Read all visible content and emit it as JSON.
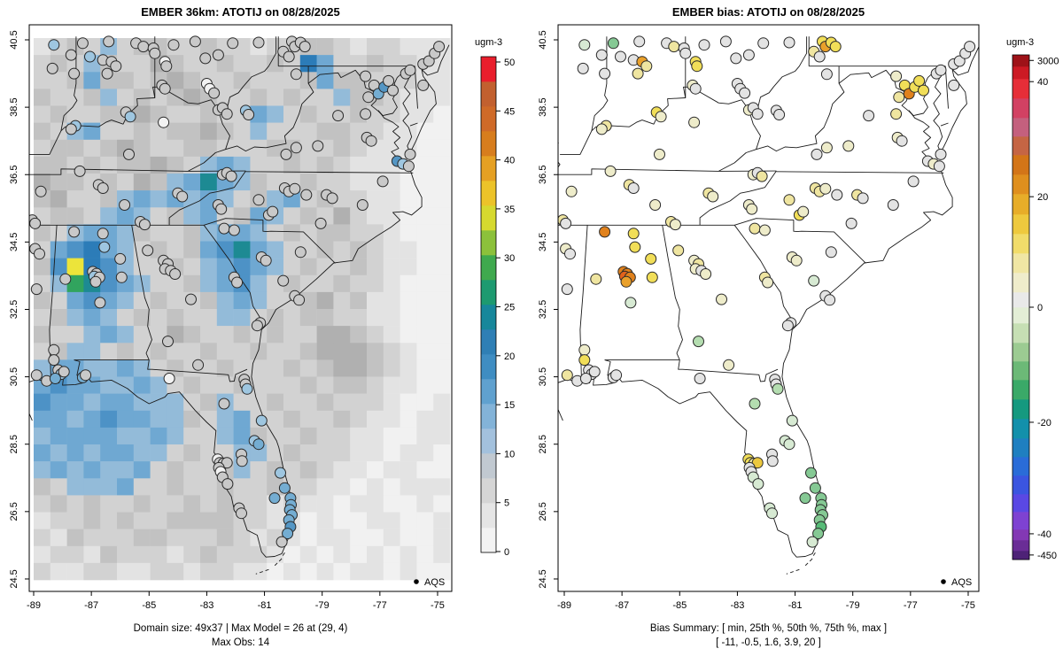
{
  "panels": {
    "left": {
      "title": "EMBER 36km: ATOTIJ on 08/28/2025",
      "caption_line1": "Domain size: 49x37 | Max Model = 26 at (29, 4)",
      "caption_line2": "Max Obs: 14",
      "legend_label": "AQS",
      "colorbar": {
        "title": "ugm-3",
        "tick_values": [
          0,
          5,
          10,
          15,
          20,
          25,
          30,
          35,
          40,
          45,
          50
        ],
        "band_colors_bottom_to_top": [
          "#f3f3f3",
          "#e5e5e5",
          "#d5d5d5",
          "#c1c9d1",
          "#a3c1dd",
          "#83b3d8",
          "#60a1cf",
          "#3f8dc2",
          "#2f7fb5",
          "#17879b",
          "#1d9a70",
          "#3fa94e",
          "#8cc13b",
          "#d6d92f",
          "#ecc329",
          "#e5a023",
          "#d77d1d",
          "#cf6a28",
          "#c2602f",
          "#e91e2c"
        ]
      }
    },
    "right": {
      "title": "EMBER bias: ATOTIJ on 08/28/2025",
      "caption_line1": "Bias Summary: [ min, 25th %, 50th %, 75th %, max ]",
      "caption_line2": "[ -11,  -0.5,  1.6,  3.9,  20 ]",
      "legend_label": "AQS",
      "colorbar": {
        "title": "ugm-3",
        "tick_labels": [
          "3000",
          "40",
          "20",
          "0",
          "-20",
          "-40",
          "-450"
        ],
        "tick_fracs_from_top": [
          0.011,
          0.053,
          0.281,
          0.5,
          0.728,
          0.949,
          0.991
        ],
        "segments_bottom_to_top": [
          [
            "#4e2277",
            10
          ],
          [
            "#6a2d96",
            12
          ],
          [
            "#8338b4",
            12
          ],
          [
            "#7e42d2",
            20
          ],
          [
            "#5a48e4",
            20
          ],
          [
            "#3b55e0",
            21
          ],
          [
            "#2a6cd8",
            21
          ],
          [
            "#1f7fc0",
            21
          ],
          [
            "#1390ab",
            22
          ],
          [
            "#15997f",
            22
          ],
          [
            "#3aa968",
            22
          ],
          [
            "#6cb977",
            21
          ],
          [
            "#9ccb92",
            21
          ],
          [
            "#c6dfb4",
            22
          ],
          [
            "#e3eed6",
            18
          ],
          [
            "#e9e9e9",
            17
          ],
          [
            "#efeccb",
            22
          ],
          [
            "#f0e6a4",
            22
          ],
          [
            "#f1dc6a",
            22
          ],
          [
            "#eec93e",
            22
          ],
          [
            "#e7ad29",
            23
          ],
          [
            "#df8f1e",
            22
          ],
          [
            "#d37518",
            22
          ],
          [
            "#c56544",
            21
          ],
          [
            "#c4607e",
            21
          ],
          [
            "#d24163",
            22
          ],
          [
            "#e62e38",
            22
          ],
          [
            "#cc1a24",
            14
          ],
          [
            "#9e1218",
            13
          ]
        ]
      }
    }
  },
  "axes": {
    "x_tick_values": [
      -89,
      -87,
      -85,
      -83,
      -81,
      -79,
      -77,
      -75
    ],
    "x_tick_labels": [
      "-89",
      "-87",
      "-85",
      "-83",
      "-81",
      "-79",
      "-77",
      "-75"
    ],
    "y_tick_values": [
      24.5,
      26.5,
      28.5,
      30.5,
      32.5,
      34.5,
      36.5,
      38.5,
      40.5
    ],
    "y_tick_labels": [
      "24.5",
      "26.5",
      "28.5",
      "30.5",
      "32.5",
      "34.5",
      "36.5",
      "38.5",
      "40.5"
    ]
  },
  "raster_palette": {
    "a": "#f1f1f1",
    "b": "#e3e3e3",
    "c": "#d2d2d2",
    "d": "#c2c2c2",
    "e": "#b0b0b0",
    "f": "#aebdca",
    "g": "#93bbd9",
    "h": "#6fa8d2",
    "i": "#4d92c6",
    "j": "#2c7cb8",
    "k": "#1d8a93",
    "l": "#31a45e",
    "m": "#b3cf36",
    "n": "#ece43a"
  },
  "raster_rows": [
    "bcdcgcddccdccbccddcbccbbb",
    "cdcgdccedccdccdcjhccdccbb",
    "ccdhddcdedccdcccdhddcccbb",
    "dccdgcdcdedccdcdccgddcbbb",
    "cdccddedccdcchgcdccdccbba",
    "dcghccdcddedcgcccddccbbaa",
    "cddcdedccddcccddccdcbbbaa",
    "ddcdcddedcghgccdcdcbbbaaa",
    "eddcdcedghkhgdccdccbbbaaa",
    "deccdghghghgcdghcdccbbaaa",
    "cddcghgcdghcdhgcdcecbbaaa",
    "dcghhgdccdghhgcdcddccbaaa",
    "chijhgcdcdhikhgccdcdcbbaa",
    "dinjigccdcghihgcdccdcbbaa",
    "cglkihgccdghigcdccdccbaaa",
    "dchihgcdccdghgccdecdbbaaa",
    "cdghgcdcdccggcdcddccbbaaa",
    "dccghgccedccdcdcceedcbaaa",
    "cdggcdcdccdccdccdeeedcbaa",
    "ghhgghgcdccdcccdcdeedcbaa",
    "hihhgghgcdccdcccdcddcbbaa",
    "ihhghhgggcdgccdccdcccbaab",
    "hhghihhggdcghccdccdcbbabb",
    "ghhhhgghgccghdccdccbbaabb",
    "hghghhggcdccggcdcccbbabba",
    "ghghgghcdccdgcdcdcbbabbaa",
    "dcggghccdccdccdccbbababbb",
    "cdcdccdccdcdccbcbbabbaaba",
    "bccdcdccddddccbbabaabbaab",
    "cbdcccddcccdcbcbabbaabaab",
    "bccbdcccbcdcccbababababab",
    "cbbccbbccbccbbabababbabaa"
  ],
  "marker_colors": {
    "obs": {
      "w": "#f2f2f2",
      "g": "#c9c9c9",
      "l": "#9ec6e0",
      "b": "#74add2",
      "B": "#5496c4"
    },
    "bias": {
      "g": "#e3e3e3",
      "c": "#eeecca",
      "y": "#efe5a0",
      "Y": "#f1de58",
      "d": "#ecc83e",
      "o": "#e9a02a",
      "O": "#e0811c",
      "R": "#e2621b",
      "p": "#d7ead3",
      "n": "#b4ddb0",
      "N": "#85c994",
      "E": "#57bb77"
    }
  },
  "stations": [
    [
      -88.3,
      40.35,
      "l",
      "p"
    ],
    [
      -87.3,
      40.4,
      "g",
      "N"
    ],
    [
      -86.4,
      40.45,
      "g",
      "g"
    ],
    [
      -85.45,
      40.4,
      "g",
      "g"
    ],
    [
      -85.2,
      40.3,
      "g",
      "y"
    ],
    [
      -87.7,
      40.05,
      "g",
      "g"
    ],
    [
      -87.05,
      40.0,
      "l",
      "g"
    ],
    [
      -86.6,
      39.9,
      "g",
      "g"
    ],
    [
      -86.3,
      39.85,
      "g",
      "o"
    ],
    [
      -86.15,
      39.72,
      "g",
      "y"
    ],
    [
      -88.35,
      39.65,
      "g",
      "g"
    ],
    [
      -87.6,
      39.5,
      "g",
      "g"
    ],
    [
      -86.45,
      39.5,
      "g",
      "y"
    ],
    [
      -84.85,
      40.25,
      "g",
      "g"
    ],
    [
      -84.8,
      40.1,
      "g",
      "g"
    ],
    [
      -84.15,
      40.35,
      "g",
      "g"
    ],
    [
      -83.4,
      40.45,
      "g",
      "g"
    ],
    [
      -82.1,
      40.4,
      "g",
      "g"
    ],
    [
      -84.45,
      39.85,
      "w",
      "Y"
    ],
    [
      -84.4,
      39.72,
      "g",
      "Y"
    ],
    [
      -83.05,
      39.95,
      "g",
      "g"
    ],
    [
      -82.6,
      40.05,
      "g",
      "g"
    ],
    [
      -83.0,
      39.2,
      "w",
      "g"
    ],
    [
      -82.9,
      39.05,
      "w",
      "g"
    ],
    [
      -82.75,
      38.92,
      "g",
      "g"
    ],
    [
      -80.05,
      40.45,
      "g",
      "Y"
    ],
    [
      -79.95,
      40.3,
      "g",
      "o"
    ],
    [
      -79.75,
      40.42,
      "g",
      "Y"
    ],
    [
      -79.6,
      40.3,
      "g",
      "Y"
    ],
    [
      -80.35,
      40.15,
      "g",
      "y"
    ],
    [
      -80.15,
      40.0,
      "g",
      "g"
    ],
    [
      -81.2,
      40.42,
      "g",
      "g"
    ],
    [
      -87.55,
      37.95,
      "l",
      "y"
    ],
    [
      -87.7,
      37.85,
      "g",
      "c"
    ],
    [
      -85.8,
      38.35,
      "g",
      "Y"
    ],
    [
      -85.65,
      38.22,
      "l",
      "c"
    ],
    [
      -84.55,
      39.15,
      "g",
      "c"
    ],
    [
      -84.45,
      39.05,
      "g",
      "g"
    ],
    [
      -84.5,
      38.05,
      "w",
      "c"
    ],
    [
      -85.7,
      37.1,
      "g",
      "c"
    ],
    [
      -82.6,
      38.42,
      "g",
      "c"
    ],
    [
      -82.45,
      38.48,
      "g",
      "g"
    ],
    [
      -82.3,
      38.3,
      "g",
      "g"
    ],
    [
      -81.65,
      38.4,
      "l",
      "g"
    ],
    [
      -81.55,
      38.28,
      "g",
      "g"
    ],
    [
      -79.9,
      39.48,
      "g",
      "g"
    ],
    [
      -77.5,
      39.42,
      "g",
      "c"
    ],
    [
      -77.2,
      39.15,
      "g",
      "Y"
    ],
    [
      -77.05,
      38.9,
      "b",
      "O"
    ],
    [
      -76.85,
      39.1,
      "B",
      "Y"
    ],
    [
      -76.7,
      39.28,
      "g",
      "Y"
    ],
    [
      -76.55,
      39.0,
      "g",
      "Y"
    ],
    [
      -77.4,
      38.8,
      "g",
      "y"
    ],
    [
      -76.1,
      39.5,
      "g",
      "g"
    ],
    [
      -75.95,
      39.6,
      "g",
      "g"
    ],
    [
      -75.5,
      39.78,
      "g",
      "g"
    ],
    [
      -75.3,
      39.87,
      "g",
      "g"
    ],
    [
      -75.1,
      40.1,
      "g",
      "g"
    ],
    [
      -74.95,
      40.3,
      "g",
      "g"
    ],
    [
      -75.5,
      39.15,
      "g",
      "g"
    ],
    [
      -77.45,
      37.6,
      "g",
      "c"
    ],
    [
      -77.3,
      37.5,
      "g",
      "g"
    ],
    [
      -78.45,
      38.25,
      "g",
      "g"
    ],
    [
      -77.5,
      38.3,
      "g",
      "y"
    ],
    [
      -79.9,
      37.3,
      "g",
      "c"
    ],
    [
      -80.25,
      37.1,
      "g",
      "g"
    ],
    [
      -79.15,
      37.35,
      "g",
      "c"
    ],
    [
      -76.4,
      36.9,
      "B",
      "g"
    ],
    [
      -76.2,
      36.82,
      "l",
      "c"
    ],
    [
      -76.0,
      36.75,
      "g",
      "g"
    ],
    [
      -75.95,
      37.1,
      "g",
      "g"
    ],
    [
      -89.05,
      35.15,
      "g",
      "y"
    ],
    [
      -88.95,
      35.05,
      "g",
      "g"
    ],
    [
      -88.75,
      36.0,
      "g",
      "c"
    ],
    [
      -86.75,
      36.2,
      "g",
      "y"
    ],
    [
      -86.6,
      36.1,
      "g",
      "g"
    ],
    [
      -87.4,
      36.6,
      "g",
      "c"
    ],
    [
      -85.85,
      35.6,
      "g",
      "c"
    ],
    [
      -84.0,
      35.95,
      "g",
      "y"
    ],
    [
      -83.85,
      35.85,
      "g",
      "c"
    ],
    [
      -85.3,
      35.1,
      "g",
      "y"
    ],
    [
      -85.15,
      35.02,
      "g",
      "c"
    ],
    [
      -82.45,
      36.5,
      "g",
      "c"
    ],
    [
      -82.3,
      36.55,
      "g",
      "g"
    ],
    [
      -82.15,
      36.45,
      "g",
      "y"
    ],
    [
      -82.6,
      35.6,
      "g",
      "c"
    ],
    [
      -82.5,
      35.48,
      "g",
      "c"
    ],
    [
      -81.2,
      35.75,
      "g",
      "y"
    ],
    [
      -80.85,
      35.3,
      "g",
      "Y"
    ],
    [
      -80.72,
      35.4,
      "g",
      "c"
    ],
    [
      -80.3,
      36.1,
      "g",
      "y"
    ],
    [
      -80.15,
      36.0,
      "g",
      "y"
    ],
    [
      -79.95,
      36.08,
      "g",
      "c"
    ],
    [
      -79.55,
      35.9,
      "g",
      "g"
    ],
    [
      -78.85,
      35.9,
      "g",
      "y"
    ],
    [
      -78.65,
      35.8,
      "g",
      "g"
    ],
    [
      -77.6,
      35.6,
      "g",
      "g"
    ],
    [
      -76.9,
      36.3,
      "g",
      "g"
    ],
    [
      -79.05,
      35.05,
      "g",
      "g"
    ],
    [
      -82.4,
      34.9,
      "g",
      "y"
    ],
    [
      -82.05,
      34.85,
      "g",
      "c"
    ],
    [
      -81.1,
      34.05,
      "g",
      "c"
    ],
    [
      -80.95,
      33.95,
      "g",
      "c"
    ],
    [
      -80.35,
      33.35,
      "g",
      "p"
    ],
    [
      -79.95,
      32.9,
      "g",
      "g"
    ],
    [
      -79.8,
      32.78,
      "g",
      "g"
    ],
    [
      -79.75,
      34.2,
      "g",
      "g"
    ],
    [
      -85.05,
      34.25,
      "g",
      "y"
    ],
    [
      -84.5,
      33.95,
      "g",
      "c"
    ],
    [
      -84.35,
      33.85,
      "g",
      "y"
    ],
    [
      -84.45,
      33.7,
      "g",
      "c"
    ],
    [
      -84.25,
      33.65,
      "g",
      "g"
    ],
    [
      -84.1,
      33.55,
      "g",
      "c"
    ],
    [
      -83.55,
      32.8,
      "g",
      "c"
    ],
    [
      -82.05,
      33.45,
      "g",
      "y"
    ],
    [
      -81.95,
      33.3,
      "g",
      "c"
    ],
    [
      -81.15,
      32.1,
      "g",
      "g"
    ],
    [
      -81.25,
      32.02,
      "g",
      "g"
    ],
    [
      -84.35,
      31.55,
      "g",
      "n"
    ],
    [
      -83.3,
      30.85,
      "g",
      "c"
    ],
    [
      -87.6,
      34.8,
      "g",
      "O"
    ],
    [
      -86.6,
      34.75,
      "g",
      "Y"
    ],
    [
      -86.55,
      34.35,
      "l",
      "Y"
    ],
    [
      -86.0,
      34.0,
      "g",
      "Y"
    ],
    [
      -85.95,
      33.45,
      "g",
      "Y"
    ],
    [
      -86.95,
      33.62,
      "g",
      "O"
    ],
    [
      -86.82,
      33.56,
      "g",
      "O"
    ],
    [
      -86.9,
      33.48,
      "l",
      "R"
    ],
    [
      -86.72,
      33.45,
      "g",
      "O"
    ],
    [
      -86.85,
      33.32,
      "g",
      "o"
    ],
    [
      -87.9,
      33.4,
      "g",
      "y"
    ],
    [
      -86.7,
      32.7,
      "g",
      "p"
    ],
    [
      -88.3,
      31.3,
      "g",
      "c"
    ],
    [
      -88.95,
      34.3,
      "g",
      "c"
    ],
    [
      -88.8,
      34.15,
      "g",
      "g"
    ],
    [
      -88.9,
      33.1,
      "g",
      "g"
    ],
    [
      -88.9,
      30.55,
      "g",
      "y"
    ],
    [
      -88.55,
      30.38,
      "g",
      "g"
    ],
    [
      -88.3,
      31.0,
      "g",
      "Y"
    ],
    [
      -88.15,
      30.7,
      "g",
      "g"
    ],
    [
      -88.05,
      30.58,
      "l",
      "g"
    ],
    [
      -87.95,
      30.65,
      "g",
      "g"
    ],
    [
      -88.25,
      30.45,
      "b",
      "g"
    ],
    [
      -87.3,
      30.48,
      "b",
      "g"
    ],
    [
      -87.2,
      30.55,
      "g",
      "g"
    ],
    [
      -84.3,
      30.45,
      "w",
      "g"
    ],
    [
      -82.4,
      29.7,
      "g",
      "n"
    ],
    [
      -81.7,
      30.42,
      "g",
      "g"
    ],
    [
      -81.66,
      30.28,
      "g",
      "g"
    ],
    [
      -81.6,
      30.14,
      "l",
      "n"
    ],
    [
      -81.1,
      29.2,
      "l",
      "p"
    ],
    [
      -81.35,
      28.6,
      "l",
      "p"
    ],
    [
      -81.2,
      28.5,
      "b",
      "p"
    ],
    [
      -81.8,
      28.2,
      "g",
      "g"
    ],
    [
      -81.78,
      28.0,
      "g",
      "g"
    ],
    [
      -82.62,
      28.05,
      "w",
      "Y"
    ],
    [
      -82.55,
      27.95,
      "g",
      "Y"
    ],
    [
      -82.42,
      27.93,
      "g",
      "y"
    ],
    [
      -82.3,
      27.95,
      "g",
      "d"
    ],
    [
      -82.58,
      27.8,
      "g",
      "g"
    ],
    [
      -82.52,
      27.68,
      "w",
      "g"
    ],
    [
      -82.45,
      27.52,
      "g",
      "p"
    ],
    [
      -82.28,
      27.32,
      "g",
      "p"
    ],
    [
      -81.88,
      26.6,
      "g",
      "p"
    ],
    [
      -81.8,
      26.45,
      "g",
      "p"
    ],
    [
      -80.45,
      27.65,
      "l",
      "N"
    ],
    [
      -80.3,
      27.2,
      "b",
      "N"
    ],
    [
      -80.65,
      26.9,
      "b",
      "N"
    ],
    [
      -80.1,
      26.9,
      "b",
      "N"
    ],
    [
      -80.08,
      26.7,
      "b",
      "N"
    ],
    [
      -80.12,
      26.55,
      "b",
      "N"
    ],
    [
      -80.05,
      26.4,
      "b",
      "N"
    ],
    [
      -80.15,
      26.25,
      "b",
      "N"
    ],
    [
      -80.1,
      26.05,
      "B",
      "E"
    ],
    [
      -80.2,
      25.85,
      "b",
      "N"
    ],
    [
      -80.4,
      25.6,
      "g",
      "p"
    ]
  ],
  "chart_data": [
    {
      "type": "heatmap",
      "title": "EMBER 36km: ATOTIJ on 08/28/2025",
      "units": "ugm-3",
      "colorbar_range": [
        0,
        50
      ],
      "colorbar_ticks": [
        0,
        5,
        10,
        15,
        20,
        25,
        30,
        35,
        40,
        45,
        50
      ],
      "xlabel_ticks": [
        -89,
        -87,
        -85,
        -83,
        -81,
        -79,
        -77,
        -75
      ],
      "ylabel_ticks": [
        24.5,
        26.5,
        28.5,
        30.5,
        32.5,
        34.5,
        36.5,
        38.5,
        40.5
      ],
      "domain_size": "49x37",
      "max_model": 26,
      "max_model_cell": [
        29,
        4
      ],
      "max_obs": 14,
      "legend": "AQS",
      "notes": "Model PM raster (gray=low, blue=10-18, teal/green=19-24, yellow=~26 max over central Alabama; large blue area over Gulf of Mexico) with AQS station circles colored by observed value (mostly gray 3-7, light blue up to 14)."
    },
    {
      "type": "scatter",
      "title": "EMBER bias: ATOTIJ on 08/28/2025",
      "units": "ugm-3",
      "colorbar_ticks": [
        3000,
        40,
        20,
        0,
        -20,
        -40,
        -450
      ],
      "xlabel_ticks": [
        -89,
        -87,
        -85,
        -83,
        -81,
        -79,
        -77,
        -75
      ],
      "ylabel_ticks": [
        24.5,
        26.5,
        28.5,
        30.5,
        32.5,
        34.5,
        36.5,
        38.5,
        40.5
      ],
      "bias_summary_labels": [
        "min",
        "25th %",
        "50th %",
        "75th %",
        "max"
      ],
      "bias_summary_values": [
        -11,
        -0.5,
        1.6,
        3.9,
        20
      ],
      "legend": "AQS",
      "notes": "Model-minus-obs bias at AQS stations: mostly near 0 (gray/pale yellow), positive bias orange cluster ~15-20 over central Alabama and near Pittsburgh, negative bias greens along southeast Florida coast."
    }
  ]
}
